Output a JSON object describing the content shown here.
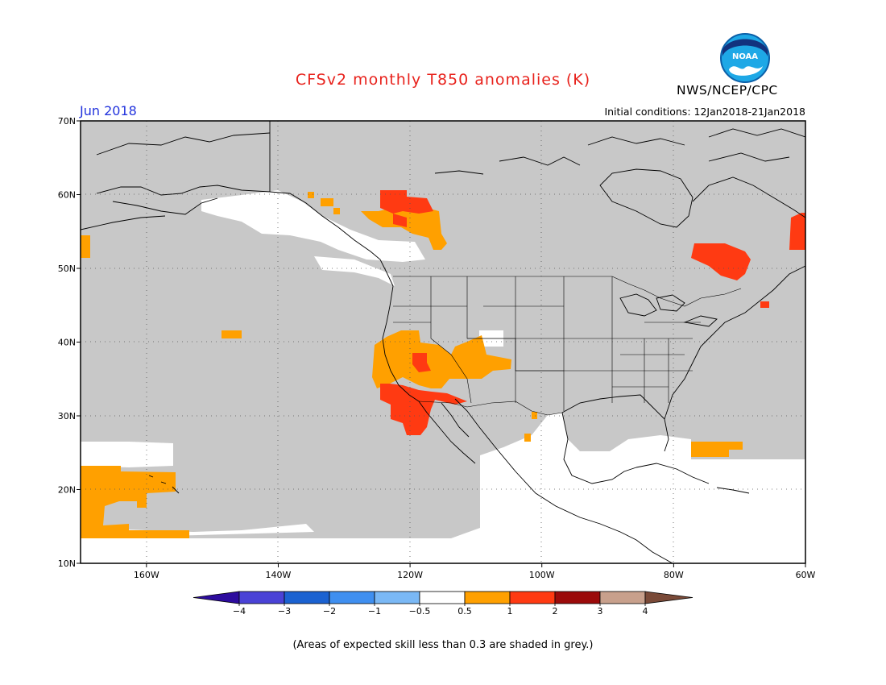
{
  "header": {
    "title": "CFSv2 monthly T850 anomalies (K)",
    "month": "Jun 2018",
    "initial_conditions": "Initial conditions: 12Jan2018-21Jan2018",
    "agency": "NWS/NCEP/CPC",
    "logo_text": "NOAA"
  },
  "map": {
    "lon_range": [
      -170,
      -60
    ],
    "lat_range": [
      10,
      70
    ],
    "lon_ticks": [
      {
        "value": -160,
        "label": "160W"
      },
      {
        "value": -140,
        "label": "140W"
      },
      {
        "value": -120,
        "label": "120W"
      },
      {
        "value": -100,
        "label": "100W"
      },
      {
        "value": -80,
        "label": "80W"
      },
      {
        "value": -60,
        "label": "60W"
      }
    ],
    "lat_ticks": [
      {
        "value": 10,
        "label": "10N"
      },
      {
        "value": 20,
        "label": "20N"
      },
      {
        "value": 30,
        "label": "30N"
      },
      {
        "value": 40,
        "label": "40N"
      },
      {
        "value": 50,
        "label": "50N"
      },
      {
        "value": 60,
        "label": "60N"
      },
      {
        "value": 70,
        "label": "70N"
      }
    ],
    "colors": {
      "low_skill": "#c8c8c8",
      "neutral": "#ffffff",
      "anom_0_5_to_1": "#ffa000",
      "anom_1_to_2": "#ff3a12"
    }
  },
  "colorbar": {
    "labels": [
      "−4",
      "−3",
      "−2",
      "−1",
      "−0.5",
      "0.5",
      "1",
      "2",
      "3",
      "4"
    ],
    "colors": [
      "#2d0c9e",
      "#4a42d6",
      "#1b62d1",
      "#3f8ff0",
      "#7ab8f5",
      "#ffffff",
      "#ffa000",
      "#ff3a12",
      "#9b0a0a",
      "#c8a08c",
      "#7a4a38"
    ]
  },
  "footnote": "(Areas of expected skill less than 0.3 are shaded in grey.)"
}
